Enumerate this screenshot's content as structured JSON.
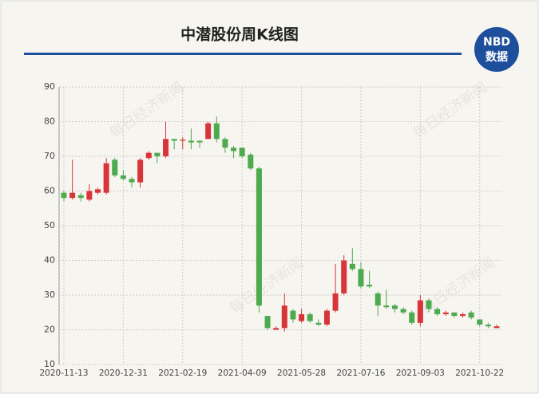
{
  "chart_data": {
    "type": "candlestick",
    "title": "中潜股份周K线图",
    "logo": {
      "top": "NBD",
      "bottom": "数据"
    },
    "watermark": "每日经济新闻",
    "categories": [
      "2020-11-13",
      null,
      null,
      null,
      null,
      null,
      null,
      "2020-12-31",
      null,
      null,
      null,
      null,
      null,
      null,
      "2021-02-19",
      null,
      null,
      null,
      null,
      null,
      null,
      "2021-04-09",
      null,
      null,
      null,
      null,
      null,
      null,
      "2021-05-28",
      null,
      null,
      null,
      null,
      null,
      null,
      "2021-07-16",
      null,
      null,
      null,
      null,
      null,
      null,
      "2021-09-03",
      null,
      null,
      null,
      null,
      null,
      null,
      "2021-10-22",
      null,
      null
    ],
    "open": [
      59.5,
      58,
      58.8,
      57.5,
      59.5,
      59.5,
      69,
      64.5,
      63.5,
      62.5,
      69.5,
      71,
      70,
      75,
      74.5,
      74.5,
      74.5,
      75,
      79.5,
      75,
      72.5,
      72.5,
      70.5,
      66.5,
      24,
      20,
      20.5,
      25.5,
      22.5,
      24.5,
      22,
      21.5,
      25.5,
      30.5,
      39,
      37.5,
      33,
      30.5,
      27,
      27,
      26,
      25,
      22,
      28.5,
      26,
      24.5,
      25,
      24,
      25,
      23,
      21.5,
      20.5
    ],
    "high": [
      60,
      69,
      59.5,
      62,
      61,
      69.5,
      69.5,
      66,
      64,
      69.5,
      71.5,
      71,
      80,
      75,
      75.5,
      78,
      74.5,
      80,
      81.5,
      75.5,
      73,
      72.5,
      71,
      67,
      24,
      21,
      30.5,
      26,
      26,
      25,
      23,
      26,
      39,
      41.5,
      43.5,
      39.5,
      37,
      31,
      31.5,
      27.5,
      26.5,
      25.5,
      30,
      29,
      26.5,
      25.5,
      25,
      25,
      25.5,
      23,
      22,
      21.5
    ],
    "low": [
      57,
      57.5,
      57,
      57,
      59,
      59,
      64,
      63,
      61,
      61,
      69,
      68,
      69.5,
      72,
      72,
      72,
      72.5,
      75,
      74,
      71,
      69.5,
      69.5,
      66,
      25,
      20,
      20,
      19.5,
      22,
      22,
      22,
      21,
      21,
      25,
      30,
      37,
      32,
      32,
      24,
      26,
      25,
      24.5,
      21.5,
      21,
      25,
      24,
      24,
      23.5,
      23.5,
      23,
      21,
      20.5,
      20.5
    ],
    "close": [
      58,
      59.5,
      58,
      60,
      60.5,
      68,
      64.5,
      63.5,
      62.5,
      69,
      71,
      70,
      75,
      74.5,
      74.8,
      74,
      74,
      79.5,
      75,
      72.5,
      71.5,
      70,
      66.5,
      27,
      20.5,
      20.5,
      27,
      23,
      24.5,
      22.5,
      21.5,
      25.5,
      30.5,
      40,
      37.5,
      32.5,
      32.5,
      27,
      26.5,
      26,
      25,
      22,
      28.5,
      26,
      24.5,
      25,
      24,
      24.5,
      23.5,
      21.5,
      21,
      21
    ],
    "up_color": "#d8353b",
    "down_color": "#4daa4f",
    "ylim": [
      10,
      90
    ],
    "yticks": [
      10,
      20,
      30,
      40,
      50,
      60,
      70,
      80,
      90
    ],
    "grid": true
  }
}
